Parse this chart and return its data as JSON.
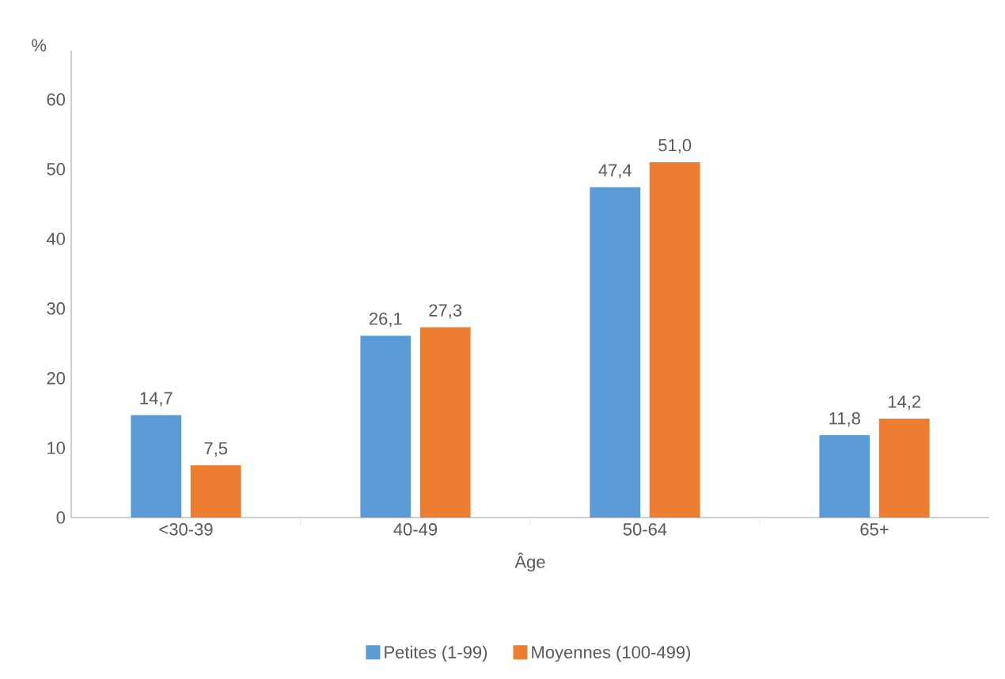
{
  "chart_data": {
    "type": "bar",
    "xlabel": "Âge",
    "ylabel": "%",
    "categories": [
      "<30-39",
      "40-49",
      "50-64",
      "65+"
    ],
    "series": [
      {
        "name": "Petites (1-99)",
        "color": "#5b9bd5",
        "values": [
          14.7,
          26.1,
          47.4,
          11.8
        ],
        "value_labels": [
          "14,7",
          "26,1",
          "47,4",
          "11,8"
        ]
      },
      {
        "name": "Moyennes (100-499)",
        "color": "#ed7d31",
        "values": [
          7.5,
          27.3,
          51.0,
          14.2
        ],
        "value_labels": [
          "7,5",
          "27,3",
          "51,0",
          "14,2"
        ]
      }
    ],
    "ylim": [
      0,
      67
    ],
    "yticks": [
      0,
      10,
      20,
      30,
      40,
      50,
      60
    ],
    "grid": false,
    "legend": "bottom"
  }
}
